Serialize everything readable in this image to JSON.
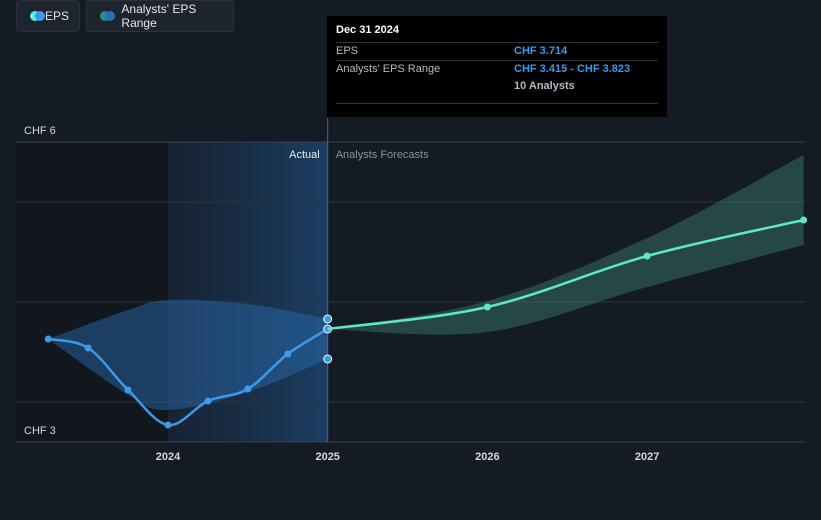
{
  "chart_data": {
    "type": "line",
    "y_tick_labels": [
      "CHF 6",
      "CHF 3"
    ],
    "ylim": [
      3,
      6
    ],
    "x_tick_labels": [
      "2024",
      "2025",
      "2026",
      "2027"
    ],
    "xlim": [
      2023.2,
      2027.98
    ],
    "section_labels": {
      "actual": "Actual",
      "forecast": "Analysts Forecasts"
    },
    "series": [
      {
        "name": "EPS",
        "kind": "actual",
        "color": "#3d9ae8",
        "points": [
          [
            2023.25,
            4.03
          ],
          [
            2023.5,
            3.94
          ],
          [
            2023.75,
            3.52
          ],
          [
            2024.0,
            3.17
          ],
          [
            2024.25,
            3.41
          ],
          [
            2024.5,
            3.53
          ],
          [
            2024.75,
            3.88
          ],
          [
            2025.0,
            4.13
          ]
        ]
      },
      {
        "name": "EPS",
        "kind": "forecast",
        "color": "#5ee8c6",
        "points": [
          [
            2025.0,
            4.13
          ],
          [
            2026.0,
            4.35
          ],
          [
            2027.0,
            4.86
          ],
          [
            2027.98,
            5.22
          ]
        ]
      }
    ],
    "range_bands": [
      {
        "name": "Analysts' EPS Range",
        "kind": "actual",
        "color": "#2a6fb5",
        "x": [
          2023.25,
          2023.75,
          2024.0,
          2024.5,
          2025.0
        ],
        "low": [
          4.03,
          3.47,
          3.32,
          3.5,
          3.83
        ],
        "high": [
          4.03,
          4.32,
          4.42,
          4.38,
          4.23
        ]
      },
      {
        "name": "Analysts' EPS Range",
        "kind": "forecast",
        "color": "#3f8a7e",
        "x": [
          2025.0,
          2026.0,
          2027.0,
          2027.98
        ],
        "low": [
          4.13,
          4.1,
          4.55,
          4.97
        ],
        "high": [
          4.13,
          4.41,
          5.04,
          5.87
        ]
      }
    ],
    "markers": [
      {
        "x": 2025.0,
        "y": 4.23,
        "color": "#3d9ae8"
      },
      {
        "x": 2025.0,
        "y": 3.83,
        "color": "#3d9ae8"
      }
    ],
    "grid": true
  },
  "tooltip": {
    "date": "Dec 31 2024",
    "rows": [
      {
        "label": "EPS",
        "value": "CHF 3.714"
      },
      {
        "label": "Analysts' EPS Range",
        "value": "CHF 3.415 - CHF 3.823"
      }
    ],
    "analysts": "10 Analysts"
  },
  "legend": {
    "eps": {
      "label": "EPS",
      "colors": [
        "#5ee8f0",
        "#3d9ae8"
      ]
    },
    "range": {
      "label": "Analysts' EPS Range",
      "colors": [
        "#2f8a8a",
        "#2a6fb5"
      ]
    }
  }
}
